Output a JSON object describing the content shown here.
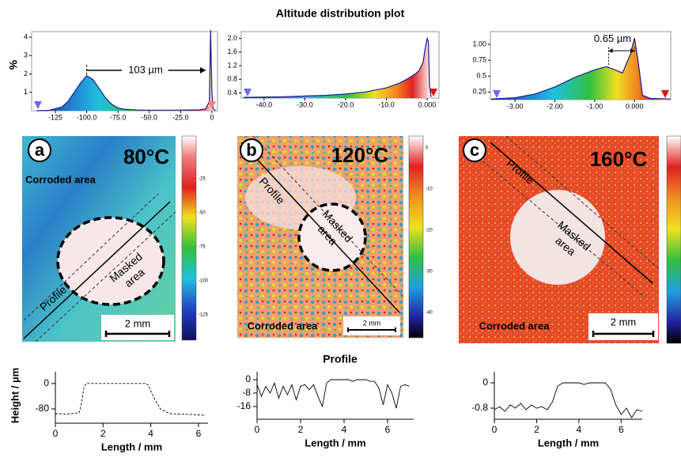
{
  "title": "Altitude distribution plot",
  "histogram_ylabel": "%",
  "profile_title": "Profile",
  "profile_ylabel": "Height / µm",
  "chart_data": [
    {
      "type": "area",
      "color": "#1b1b8f",
      "x": [
        -140,
        -130,
        -120,
        -115,
        -110,
        -105,
        -100,
        -95,
        -90,
        -85,
        -80,
        -75,
        -70,
        -60,
        -50,
        -40,
        -30,
        -20,
        -10,
        -5,
        -2,
        -1,
        0,
        1,
        3
      ],
      "values": [
        0,
        0.02,
        0.2,
        0.5,
        1.0,
        1.5,
        1.9,
        1.7,
        1.2,
        0.7,
        0.35,
        0.15,
        0.08,
        0.04,
        0.03,
        0.03,
        0.03,
        0.04,
        0.05,
        0.1,
        0.5,
        4.4,
        1.0,
        0.1,
        0
      ],
      "xlim": [
        -144,
        4.5
      ],
      "ylim": [
        0,
        4.3
      ],
      "xticks": [
        -125,
        {
          "value": -100,
          "label": "-100.0"
        },
        {
          "value": -75,
          "label": "-75.0"
        },
        {
          "value": -50,
          "label": "-50.0"
        },
        {
          "value": -25,
          "label": "-25.0"
        },
        0
      ],
      "yticks": [
        1,
        2,
        3,
        4
      ],
      "annotation": "103 µm"
    },
    {
      "type": "area",
      "color": "#1b1b8f",
      "x": [
        -45,
        -40,
        -35,
        -30,
        -25,
        -20,
        -15,
        -10,
        -7,
        -5,
        -3,
        -2,
        -1,
        -0.5,
        0,
        0.3,
        0.6,
        1
      ],
      "values": [
        0.27,
        0.28,
        0.29,
        0.31,
        0.33,
        0.37,
        0.43,
        0.55,
        0.68,
        0.8,
        0.95,
        1.05,
        1.3,
        1.7,
        2.0,
        1.9,
        0.6,
        0.28
      ],
      "xlim": [
        -45.6,
        2.9
      ],
      "ylim": [
        0.25,
        2.2
      ],
      "xticks": [
        {
          "value": -40,
          "label": "-40.0"
        },
        {
          "value": -30,
          "label": "-30.0"
        },
        {
          "value": -20,
          "label": "-20.0"
        },
        {
          "value": -10,
          "label": "-10.0"
        },
        {
          "value": 0,
          "label": "0.000"
        }
      ],
      "yticks": [
        0.4,
        0.8,
        1.2,
        1.6,
        {
          "value": 2,
          "label": "2.0"
        }
      ]
    },
    {
      "type": "area",
      "color": "#1b1b8f",
      "x": [
        -3.6,
        -3,
        -2.5,
        -2,
        -1.5,
        -1.0,
        -0.7,
        -0.5,
        -0.3,
        -0.1,
        0,
        0.1,
        0.2,
        0.4,
        0.9
      ],
      "values": [
        0.14,
        0.16,
        0.22,
        0.33,
        0.48,
        0.6,
        0.65,
        0.6,
        0.55,
        0.85,
        1.1,
        0.7,
        0.2,
        0.15,
        0.14
      ],
      "xlim": [
        -3.62,
        0.91
      ],
      "ylim": [
        0.13,
        1.2
      ],
      "xticks": [
        {
          "value": -3,
          "label": "-3.00"
        },
        {
          "value": -2,
          "label": "-2.00"
        },
        {
          "value": -1,
          "label": "-1.00"
        },
        {
          "value": 0,
          "label": "0.000"
        }
      ],
      "yticks": [
        0.25,
        0.5,
        0.75,
        {
          "value": 1,
          "label": "1.00"
        }
      ],
      "annotation": "0.65 µm"
    },
    {
      "type": "line",
      "color": "#000000",
      "xlabel": "Length / mm",
      "x": [
        0,
        0.5,
        1.0,
        1.1,
        1.2,
        1.3,
        2,
        3,
        3.8,
        3.9,
        4.1,
        4.4,
        4.8,
        5.5,
        6.3
      ],
      "values": [
        -95,
        -96,
        -92,
        -60,
        -10,
        0,
        0,
        0,
        0,
        -5,
        -40,
        -80,
        -95,
        -97,
        -100
      ],
      "xlim": [
        0,
        6.4
      ],
      "ylim": [
        -125,
        37
      ],
      "xticks": [
        0,
        2,
        4,
        6
      ],
      "yticks": [
        0,
        -80
      ]
    },
    {
      "type": "line",
      "color": "#000000",
      "xlabel": "Length / mm",
      "x": [
        0,
        0.2,
        0.4,
        0.6,
        0.8,
        1.0,
        1.2,
        1.4,
        1.6,
        1.8,
        2.0,
        2.2,
        2.4,
        2.6,
        2.8,
        3.0,
        3.2,
        3.4,
        3.6,
        3.8,
        4.0,
        4.2,
        4.4,
        4.6,
        4.8,
        5.0,
        5.2,
        5.4,
        5.6,
        5.8,
        6.0,
        6.2,
        6.4,
        6.6,
        6.8,
        7.0
      ],
      "values": [
        -3,
        -10,
        -4,
        -8,
        -2,
        -11,
        -4,
        -9,
        -3,
        -12,
        -4,
        -3,
        -6,
        -3,
        -10,
        -16,
        -2,
        0,
        0,
        0,
        0,
        0,
        -1,
        0,
        0,
        0,
        -1,
        -1,
        -5,
        -15,
        -3,
        -8,
        -17,
        -4,
        -3,
        -4
      ],
      "xlim": [
        0,
        7.2
      ],
      "ylim": [
        -23.6,
        4.7
      ],
      "xticks": [
        0,
        2,
        4,
        6
      ],
      "yticks": [
        0,
        -8,
        -16
      ]
    },
    {
      "type": "line",
      "color": "#000000",
      "xlabel": "Length / mm",
      "x": [
        0,
        0.25,
        0.5,
        0.75,
        1,
        1.25,
        1.5,
        1.75,
        2,
        2.25,
        2.5,
        2.75,
        3,
        3.25,
        3.5,
        3.75,
        4,
        4.25,
        4.5,
        4.75,
        5,
        5.25,
        5.5,
        5.75,
        6,
        6.25,
        6.5,
        6.75,
        7
      ],
      "values": [
        -0.85,
        -0.75,
        -0.9,
        -0.7,
        -0.8,
        -0.65,
        -0.85,
        -0.7,
        -0.8,
        -0.75,
        -0.85,
        -0.6,
        -0.1,
        0,
        0,
        0,
        0,
        -0.05,
        0,
        0,
        0,
        0,
        -0.2,
        -0.7,
        -1.0,
        -0.8,
        -1.1,
        -0.85,
        -0.9
      ],
      "xlim": [
        0,
        7
      ],
      "ylim": [
        -1.15,
        0.35
      ],
      "xticks": [
        0,
        2,
        4,
        6
      ],
      "yticks": [
        0,
        -0.8
      ]
    }
  ],
  "maps": [
    {
      "label": "a",
      "temperature": "80°C",
      "corroded": "Corroded area",
      "masked": [
        "Masked",
        "area"
      ],
      "profile": "Profile",
      "scale": "2 mm",
      "colorbar_ticks": [
        "-25",
        "-50",
        "-75",
        "-100",
        "-125"
      ]
    },
    {
      "label": "b",
      "temperature": "120°C",
      "corroded": "Corroded area",
      "masked": [
        "Masked",
        "area"
      ],
      "profile": "Profile",
      "scale": "2 mm",
      "colorbar_ticks": [
        "0",
        "-10",
        "-20",
        "-30",
        "-40"
      ]
    },
    {
      "label": "c",
      "temperature": "160°C",
      "corroded": "Corroded area",
      "masked": [
        "Masked",
        "area"
      ],
      "profile": "Profile",
      "scale": "2 mm"
    }
  ]
}
